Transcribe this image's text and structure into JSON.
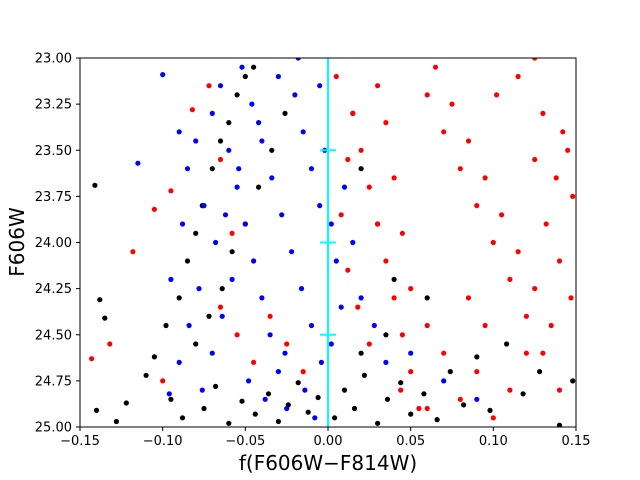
{
  "chart_data": {
    "type": "scatter",
    "title": "",
    "xlabel": "f(F606W−F814W)",
    "ylabel": "F606W",
    "xlim": [
      -0.15,
      0.15
    ],
    "ylim": [
      25.0,
      23.0
    ],
    "y_inverted": true,
    "grid": false,
    "legend": "none",
    "x_ticks": [
      -0.15,
      -0.1,
      -0.05,
      0.0,
      0.05,
      0.1,
      0.15
    ],
    "x_tick_labels": [
      "−0.15",
      "−0.10",
      "−0.05",
      "0.00",
      "0.05",
      "0.10",
      "0.15"
    ],
    "y_ticks": [
      23.0,
      23.25,
      23.5,
      23.75,
      24.0,
      24.25,
      24.5,
      24.75,
      25.0
    ],
    "y_tick_labels": [
      "23.00",
      "23.25",
      "23.50",
      "23.75",
      "24.00",
      "24.25",
      "24.50",
      "24.75",
      "25.00"
    ],
    "colors": {
      "black_series": "#000000",
      "red_series": "#ff0000",
      "blue_series": "#0000ff",
      "reference_line": "#00ffff"
    },
    "series": [
      {
        "color": "#000000",
        "points": [
          [
            -0.141,
            23.69
          ],
          [
            -0.138,
            24.31
          ],
          [
            -0.135,
            24.41
          ],
          [
            -0.14,
            24.91
          ],
          [
            -0.128,
            24.97
          ],
          [
            -0.122,
            24.87
          ],
          [
            -0.11,
            24.72
          ],
          [
            -0.105,
            24.62
          ],
          [
            -0.098,
            24.45
          ],
          [
            -0.09,
            24.3
          ],
          [
            -0.085,
            24.1
          ],
          [
            -0.08,
            23.95
          ],
          [
            -0.076,
            23.8
          ],
          [
            -0.07,
            23.6
          ],
          [
            -0.065,
            23.45
          ],
          [
            -0.06,
            23.35
          ],
          [
            -0.055,
            23.2
          ],
          [
            -0.05,
            23.1
          ],
          [
            -0.045,
            23.05
          ],
          [
            -0.095,
            24.85
          ],
          [
            -0.088,
            24.95
          ],
          [
            -0.075,
            24.9
          ],
          [
            -0.068,
            24.78
          ],
          [
            -0.06,
            24.98
          ],
          [
            -0.052,
            24.86
          ],
          [
            -0.044,
            24.93
          ],
          [
            -0.036,
            24.82
          ],
          [
            -0.03,
            24.97
          ],
          [
            -0.024,
            24.88
          ],
          [
            -0.018,
            24.76
          ],
          [
            -0.012,
            24.92
          ],
          [
            -0.006,
            24.84
          ],
          [
            0.004,
            24.95
          ],
          [
            0.01,
            24.8
          ],
          [
            0.016,
            24.9
          ],
          [
            0.022,
            24.72
          ],
          [
            0.03,
            24.98
          ],
          [
            0.036,
            24.85
          ],
          [
            0.044,
            24.76
          ],
          [
            0.05,
            24.93
          ],
          [
            0.058,
            24.82
          ],
          [
            0.066,
            24.96
          ],
          [
            0.074,
            24.7
          ],
          [
            0.082,
            24.88
          ],
          [
            0.09,
            24.62
          ],
          [
            0.098,
            24.91
          ],
          [
            0.108,
            24.55
          ],
          [
            0.118,
            24.82
          ],
          [
            0.128,
            24.7
          ],
          [
            0.14,
            24.99
          ],
          [
            0.148,
            24.75
          ],
          [
            -0.08,
            24.55
          ],
          [
            -0.072,
            24.4
          ],
          [
            -0.064,
            24.25
          ],
          [
            -0.058,
            24.05
          ],
          [
            -0.05,
            23.9
          ],
          [
            -0.042,
            23.7
          ],
          [
            -0.034,
            23.5
          ],
          [
            -0.026,
            23.3
          ],
          [
            0.02,
            24.6
          ],
          [
            0.035,
            24.5
          ],
          [
            0.06,
            24.3
          ],
          [
            0.04,
            24.2
          ],
          [
            0.03,
            23.9
          ],
          [
            0.02,
            23.6
          ],
          [
            0.015,
            23.3
          ]
        ]
      },
      {
        "color": "#ff0000",
        "points": [
          [
            -0.143,
            24.63
          ],
          [
            -0.132,
            24.55
          ],
          [
            -0.118,
            24.05
          ],
          [
            -0.105,
            23.82
          ],
          [
            -0.095,
            23.72
          ],
          [
            -0.082,
            23.28
          ],
          [
            -0.072,
            23.15
          ],
          [
            -0.065,
            23.55
          ],
          [
            -0.058,
            23.95
          ],
          [
            -0.1,
            24.75
          ],
          [
            0.005,
            23.1
          ],
          [
            0.015,
            23.3
          ],
          [
            0.02,
            23.5
          ],
          [
            0.025,
            23.7
          ],
          [
            0.03,
            23.9
          ],
          [
            0.035,
            24.1
          ],
          [
            0.04,
            24.3
          ],
          [
            0.045,
            24.5
          ],
          [
            0.05,
            24.7
          ],
          [
            0.055,
            24.9
          ],
          [
            0.06,
            23.2
          ],
          [
            0.07,
            23.4
          ],
          [
            0.08,
            23.6
          ],
          [
            0.09,
            23.8
          ],
          [
            0.1,
            24.0
          ],
          [
            0.11,
            24.2
          ],
          [
            0.12,
            24.4
          ],
          [
            0.13,
            24.6
          ],
          [
            0.14,
            24.8
          ],
          [
            0.065,
            23.05
          ],
          [
            0.075,
            23.25
          ],
          [
            0.085,
            23.45
          ],
          [
            0.095,
            23.65
          ],
          [
            0.105,
            23.85
          ],
          [
            0.115,
            24.05
          ],
          [
            0.125,
            24.25
          ],
          [
            0.135,
            24.45
          ],
          [
            0.145,
            23.5
          ],
          [
            0.148,
            23.75
          ],
          [
            0.142,
            23.4
          ],
          [
            0.13,
            23.3
          ],
          [
            0.125,
            23.55
          ],
          [
            0.132,
            23.9
          ],
          [
            0.14,
            24.1
          ],
          [
            0.12,
            24.6
          ],
          [
            0.11,
            24.8
          ],
          [
            0.1,
            24.95
          ],
          [
            0.09,
            24.7
          ],
          [
            0.08,
            24.85
          ],
          [
            0.07,
            24.6
          ],
          [
            0.06,
            24.45
          ],
          [
            0.05,
            24.25
          ],
          [
            0.045,
            23.95
          ],
          [
            0.04,
            23.65
          ],
          [
            0.035,
            23.35
          ],
          [
            0.03,
            23.15
          ],
          [
            0.025,
            24.55
          ],
          [
            0.018,
            24.35
          ],
          [
            0.012,
            24.15
          ],
          [
            0.008,
            23.85
          ],
          [
            0.012,
            23.55
          ],
          [
            0.044,
            24.8
          ],
          [
            0.06,
            24.9
          ],
          [
            0.085,
            24.3
          ],
          [
            0.095,
            24.45
          ],
          [
            0.102,
            23.2
          ],
          [
            0.115,
            23.1
          ],
          [
            0.125,
            23.0
          ],
          [
            0.138,
            23.65
          ],
          [
            0.147,
            24.3
          ],
          [
            -0.035,
            24.4
          ],
          [
            -0.025,
            24.55
          ],
          [
            -0.015,
            24.7
          ],
          [
            -0.045,
            24.65
          ],
          [
            -0.055,
            24.5
          ],
          [
            -0.065,
            24.35
          ]
        ]
      },
      {
        "color": "#0000ff",
        "points": [
          [
            -0.1,
            23.09
          ],
          [
            -0.115,
            23.57
          ],
          [
            -0.09,
            23.4
          ],
          [
            -0.085,
            23.6
          ],
          [
            -0.075,
            23.8
          ],
          [
            -0.07,
            23.3
          ],
          [
            -0.065,
            23.15
          ],
          [
            -0.06,
            23.5
          ],
          [
            -0.055,
            23.7
          ],
          [
            -0.05,
            23.9
          ],
          [
            -0.045,
            24.1
          ],
          [
            -0.04,
            24.3
          ],
          [
            -0.035,
            24.5
          ],
          [
            -0.03,
            24.7
          ],
          [
            -0.025,
            24.9
          ],
          [
            -0.02,
            23.2
          ],
          [
            -0.015,
            23.4
          ],
          [
            -0.01,
            23.6
          ],
          [
            -0.005,
            23.8
          ],
          [
            -0.052,
            23.05
          ],
          [
            -0.046,
            23.25
          ],
          [
            -0.04,
            23.45
          ],
          [
            -0.034,
            23.65
          ],
          [
            -0.028,
            23.85
          ],
          [
            -0.022,
            24.05
          ],
          [
            -0.016,
            24.25
          ],
          [
            -0.01,
            24.45
          ],
          [
            -0.004,
            24.65
          ],
          [
            -0.058,
            24.2
          ],
          [
            -0.064,
            24.4
          ],
          [
            -0.07,
            24.6
          ],
          [
            -0.076,
            24.8
          ],
          [
            -0.048,
            24.75
          ],
          [
            -0.038,
            24.85
          ],
          [
            -0.026,
            24.6
          ],
          [
            -0.014,
            24.8
          ],
          [
            -0.008,
            24.95
          ],
          [
            0.002,
            24.55
          ],
          [
            0.008,
            24.35
          ],
          [
            0.005,
            24.1
          ],
          [
            0.002,
            23.9
          ],
          [
            -0.002,
            23.5
          ],
          [
            -0.005,
            23.15
          ],
          [
            -0.018,
            23.0
          ],
          [
            -0.03,
            23.1
          ],
          [
            -0.042,
            23.35
          ],
          [
            -0.054,
            23.6
          ],
          [
            -0.062,
            23.85
          ],
          [
            -0.068,
            24.0
          ],
          [
            -0.078,
            24.25
          ],
          [
            -0.084,
            24.45
          ],
          [
            -0.09,
            24.65
          ],
          [
            -0.096,
            24.82
          ],
          [
            -0.08,
            23.45
          ],
          [
            -0.088,
            23.9
          ],
          [
            -0.095,
            24.2
          ],
          [
            0.01,
            23.7
          ],
          [
            0.015,
            24.0
          ],
          [
            0.02,
            24.3
          ],
          [
            0.028,
            24.45
          ],
          [
            0.035,
            24.65
          ],
          [
            0.05,
            24.6
          ],
          [
            0.07,
            24.75
          ],
          [
            0.09,
            24.85
          ]
        ]
      }
    ],
    "reference_line": {
      "x": 0.0,
      "error_bar_ticks_y": [
        23.5,
        24.0,
        24.5
      ]
    }
  }
}
